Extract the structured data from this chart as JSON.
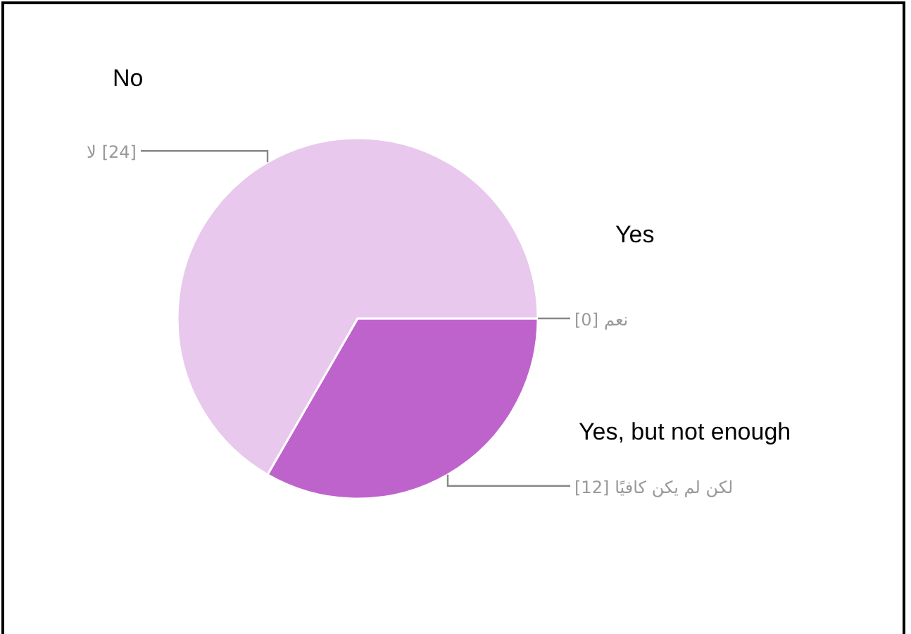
{
  "chart_data": {
    "type": "pie",
    "categories": [
      "نعم",
      "لكن لم يكن كافيًا",
      "لا"
    ],
    "values": [
      0,
      12,
      24
    ],
    "colors": [
      "#8e24aa",
      "#bf63cc",
      "#e8c8ec"
    ],
    "value_labels": [
      "[0]",
      "[12]",
      "[24]"
    ],
    "annotations": [
      "Yes",
      "Yes, but not enough",
      "No"
    ]
  }
}
